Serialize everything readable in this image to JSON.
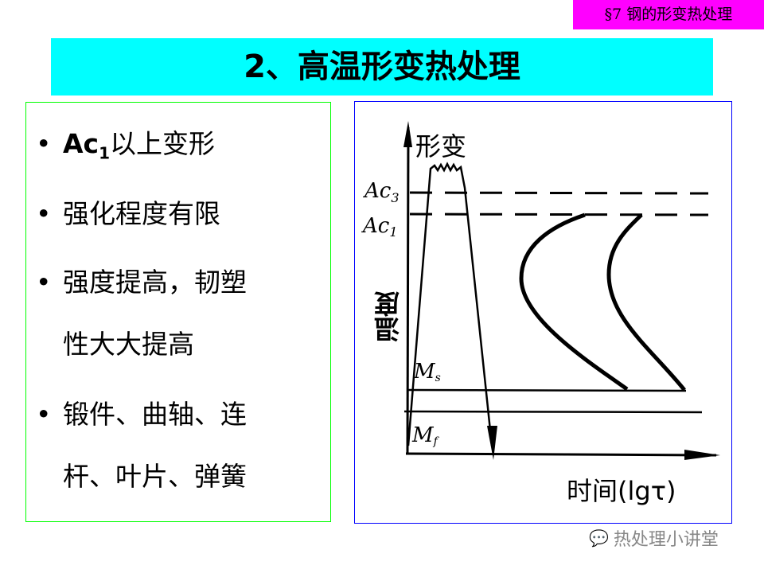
{
  "section_tag": "§7  钢的形变热处理",
  "title": "2、高温形变热处理",
  "bullets": [
    {
      "main": "Ac",
      "sub": "1",
      "rest": "以上变形"
    },
    {
      "text": "强化程度有限"
    },
    {
      "text": "强度提高，韧塑",
      "cont": "性大大提高"
    },
    {
      "text": "锻件、曲轴、连",
      "cont": "杆、叶片、弹簧"
    }
  ],
  "diagram": {
    "deform_label": "形变",
    "ac3": "Ac",
    "ac3_sub": "3",
    "ac1": "Ac",
    "ac1_sub": "1",
    "y_label": "温度",
    "ms": "M",
    "ms_sub": "s",
    "mf": "M",
    "mf_sub": "f",
    "x_label": "时间(lgτ)"
  },
  "watermark": "热处理小讲堂"
}
